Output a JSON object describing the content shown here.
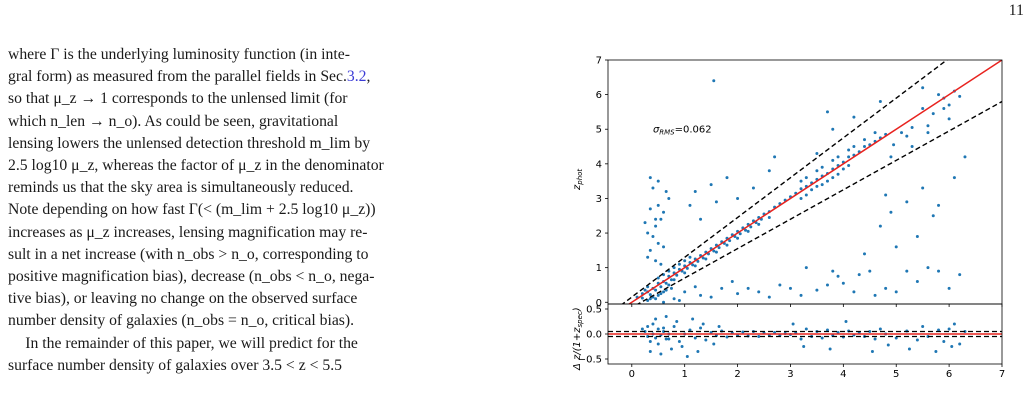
{
  "page": {
    "number": "11"
  },
  "body": {
    "para1": [
      "where Γ is the underlying luminosity function (in inte-",
      "gral form) as measured from the parallel fields in Sec.",
      "3.2",
      ",",
      "so that μ_z → 1 corresponds to the unlensed limit (for",
      "which n_len → n_o).  As could be seen, gravitational",
      "lensing lowers the unlensed detection threshold m_lim by",
      "2.5 log10 μ_z, whereas the factor of μ_z in the denominator",
      "reminds us that the sky area is simultaneously reduced.",
      "Note depending on how fast Γ(< (m_lim + 2.5 log10 μ_z))",
      "increases as μ_z increases, lensing magnification may re-",
      "sult in a net increase (with n_obs > n_o, corresponding to",
      "positive magnification bias), decrease (n_obs < n_o, nega-",
      "tive bias), or leaving no change on the observed surface",
      "number density of galaxies (n_obs = n_o, critical bias)."
    ],
    "para2": [
      "In the remainder of this paper, we will predict for the",
      "surface number density of galaxies over 3.5 < z < 5.5"
    ]
  },
  "figure": {
    "annotation": "σ_RMS=0.062",
    "colors": {
      "points": "#1f77b4",
      "fit": "#e8231f",
      "dashed": "#000000"
    }
  },
  "chart_data": [
    {
      "type": "scatter",
      "panel": "top",
      "xlabel": "z_spec",
      "ylabel": "z_phot",
      "xlim": [
        -0.45,
        7
      ],
      "ylim": [
        -0.05,
        7
      ],
      "xticks": [
        "0",
        "1",
        "2",
        "3",
        "4",
        "5",
        "6",
        "7"
      ],
      "yticks": [
        "0",
        "1",
        "2",
        "3",
        "4",
        "5",
        "6",
        "7"
      ],
      "lines": [
        {
          "name": "one-to-one",
          "style": "solid",
          "color": "#e8231f",
          "slope": 1.0,
          "intercept": 0.0
        },
        {
          "name": "upper",
          "style": "dashed",
          "color": "#000000",
          "relation": "z_phot = z_spec + 0.15(1+z_spec)"
        },
        {
          "name": "lower",
          "style": "dashed",
          "color": "#000000",
          "relation": "z_phot = z_spec - 0.15(1+z_spec)"
        }
      ],
      "points": [
        [
          0.1,
          0.15
        ],
        [
          0.2,
          0.12
        ],
        [
          0.3,
          0.3
        ],
        [
          0.35,
          0.22
        ],
        [
          0.4,
          0.4
        ],
        [
          0.45,
          0.35
        ],
        [
          0.5,
          0.55
        ],
        [
          0.55,
          0.45
        ],
        [
          0.6,
          0.6
        ],
        [
          0.65,
          0.55
        ],
        [
          0.7,
          0.75
        ],
        [
          0.75,
          0.65
        ],
        [
          0.8,
          0.85
        ],
        [
          0.85,
          0.78
        ],
        [
          0.9,
          0.95
        ],
        [
          0.95,
          0.9
        ],
        [
          1.0,
          1.05
        ],
        [
          1.05,
          0.98
        ],
        [
          1.1,
          1.15
        ],
        [
          1.15,
          1.08
        ],
        [
          1.2,
          1.25
        ],
        [
          1.25,
          1.18
        ],
        [
          1.3,
          1.35
        ],
        [
          1.35,
          1.28
        ],
        [
          1.4,
          1.45
        ],
        [
          1.45,
          1.4
        ],
        [
          1.5,
          1.55
        ],
        [
          1.55,
          1.48
        ],
        [
          1.6,
          1.65
        ],
        [
          1.65,
          1.58
        ],
        [
          1.7,
          1.75
        ],
        [
          1.75,
          1.7
        ],
        [
          1.8,
          1.85
        ],
        [
          1.85,
          1.78
        ],
        [
          1.9,
          1.95
        ],
        [
          1.95,
          1.9
        ],
        [
          2.0,
          2.05
        ],
        [
          2.05,
          1.98
        ],
        [
          2.1,
          2.15
        ],
        [
          2.15,
          2.08
        ],
        [
          2.2,
          2.25
        ],
        [
          2.25,
          2.18
        ],
        [
          2.3,
          2.35
        ],
        [
          2.35,
          2.3
        ],
        [
          2.4,
          2.45
        ],
        [
          2.45,
          2.4
        ],
        [
          2.5,
          2.55
        ],
        [
          2.6,
          2.62
        ],
        [
          2.7,
          2.75
        ],
        [
          2.8,
          2.85
        ],
        [
          2.9,
          2.95
        ],
        [
          3.0,
          3.05
        ],
        [
          3.1,
          3.15
        ],
        [
          3.2,
          3.28
        ],
        [
          3.3,
          3.35
        ],
        [
          3.4,
          3.45
        ],
        [
          3.5,
          3.55
        ],
        [
          3.6,
          3.65
        ],
        [
          3.7,
          3.72
        ],
        [
          3.8,
          3.85
        ],
        [
          3.9,
          3.95
        ],
        [
          4.0,
          4.05
        ],
        [
          4.1,
          4.2
        ],
        [
          4.2,
          4.25
        ],
        [
          4.3,
          4.35
        ],
        [
          4.4,
          4.5
        ],
        [
          4.5,
          4.55
        ],
        [
          4.6,
          4.65
        ],
        [
          4.7,
          4.75
        ],
        [
          4.8,
          4.85
        ],
        [
          0.3,
          0.05
        ],
        [
          0.35,
          0.1
        ],
        [
          0.4,
          0.15
        ],
        [
          0.45,
          0.1
        ],
        [
          0.5,
          0.2
        ],
        [
          0.55,
          0.25
        ],
        [
          0.6,
          0.3
        ],
        [
          0.65,
          0.35
        ],
        [
          0.7,
          0.5
        ],
        [
          0.75,
          0.4
        ],
        [
          0.2,
          0.25
        ],
        [
          0.25,
          0.35
        ],
        [
          0.3,
          0.45
        ],
        [
          0.5,
          0.7
        ],
        [
          0.6,
          0.8
        ],
        [
          0.7,
          0.9
        ],
        [
          0.8,
          1.0
        ],
        [
          0.9,
          1.1
        ],
        [
          1.0,
          1.2
        ],
        [
          1.1,
          1.3
        ],
        [
          0.8,
          0.65
        ],
        [
          1.0,
          0.85
        ],
        [
          1.2,
          1.05
        ],
        [
          1.4,
          1.25
        ],
        [
          1.6,
          1.45
        ],
        [
          1.8,
          1.65
        ],
        [
          2.0,
          1.85
        ],
        [
          2.2,
          2.05
        ],
        [
          2.4,
          2.25
        ],
        [
          2.6,
          2.45
        ],
        [
          3.2,
          3.0
        ],
        [
          3.3,
          3.1
        ],
        [
          3.4,
          3.25
        ],
        [
          3.5,
          3.35
        ],
        [
          3.6,
          3.4
        ],
        [
          3.7,
          3.5
        ],
        [
          3.8,
          3.6
        ],
        [
          3.9,
          3.7
        ],
        [
          4.0,
          3.85
        ],
        [
          4.1,
          3.95
        ],
        [
          3.2,
          3.5
        ],
        [
          3.3,
          3.6
        ],
        [
          3.5,
          3.8
        ],
        [
          3.6,
          3.9
        ],
        [
          3.8,
          4.1
        ],
        [
          3.9,
          4.2
        ],
        [
          4.1,
          4.4
        ],
        [
          4.2,
          4.5
        ],
        [
          4.4,
          4.7
        ],
        [
          4.6,
          4.9
        ],
        [
          0.35,
          3.6
        ],
        [
          0.4,
          3.3
        ],
        [
          0.5,
          2.8
        ],
        [
          0.55,
          2.4
        ],
        [
          0.3,
          2.0
        ],
        [
          0.45,
          2.2
        ],
        [
          0.6,
          2.6
        ],
        [
          0.7,
          3.0
        ],
        [
          0.5,
          3.5
        ],
        [
          0.65,
          3.2
        ],
        [
          0.3,
          1.3
        ],
        [
          0.35,
          1.5
        ],
        [
          0.5,
          1.7
        ],
        [
          0.4,
          1.9
        ],
        [
          0.55,
          1.1
        ],
        [
          0.6,
          1.6
        ],
        [
          0.45,
          2.4
        ],
        [
          0.35,
          2.7
        ],
        [
          0.25,
          2.3
        ],
        [
          0.45,
          1.2
        ],
        [
          1.55,
          6.4
        ],
        [
          3.7,
          5.5
        ],
        [
          3.8,
          5.0
        ],
        [
          4.2,
          5.35
        ],
        [
          3.5,
          4.3
        ],
        [
          4.7,
          5.8
        ],
        [
          5.5,
          6.2
        ],
        [
          5.8,
          6.0
        ],
        [
          5.9,
          5.6
        ],
        [
          6.0,
          5.3
        ],
        [
          5.5,
          5.6
        ],
        [
          5.2,
          4.8
        ],
        [
          5.6,
          5.1
        ],
        [
          5.9,
          5.9
        ],
        [
          6.1,
          6.1
        ],
        [
          6.2,
          5.95
        ],
        [
          4.95,
          4.55
        ],
        [
          5.1,
          4.9
        ],
        [
          5.3,
          5.05
        ],
        [
          5.7,
          5.45
        ],
        [
          1.1,
          2.8
        ],
        [
          1.2,
          3.2
        ],
        [
          1.5,
          3.4
        ],
        [
          1.8,
          3.6
        ],
        [
          2.3,
          3.3
        ],
        [
          2.6,
          3.8
        ],
        [
          1.3,
          2.4
        ],
        [
          1.6,
          2.9
        ],
        [
          2.0,
          3.0
        ],
        [
          2.7,
          4.2
        ],
        [
          3.0,
          0.4
        ],
        [
          3.2,
          0.2
        ],
        [
          3.5,
          0.35
        ],
        [
          3.7,
          0.5
        ],
        [
          3.9,
          0.75
        ],
        [
          4.2,
          0.3
        ],
        [
          4.3,
          0.8
        ],
        [
          4.5,
          0.9
        ],
        [
          4.6,
          0.2
        ],
        [
          4.8,
          0.4
        ],
        [
          5.2,
          0.9
        ],
        [
          5.4,
          0.6
        ],
        [
          5.6,
          1.0
        ],
        [
          5.8,
          0.9
        ],
        [
          6.0,
          0.4
        ],
        [
          6.2,
          0.8
        ],
        [
          3.3,
          1.0
        ],
        [
          3.8,
          0.9
        ],
        [
          4.0,
          0.55
        ],
        [
          5.0,
          0.3
        ],
        [
          2.4,
          0.3
        ],
        [
          2.6,
          0.15
        ],
        [
          2.8,
          0.5
        ],
        [
          2.2,
          0.4
        ],
        [
          4.4,
          1.4
        ],
        [
          4.7,
          2.2
        ],
        [
          5.0,
          1.6
        ],
        [
          5.7,
          2.5
        ],
        [
          4.8,
          3.1
        ],
        [
          5.5,
          3.3
        ],
        [
          5.2,
          2.9
        ],
        [
          4.9,
          2.6
        ],
        [
          5.4,
          1.9
        ],
        [
          5.8,
          2.8
        ],
        [
          6.1,
          3.6
        ],
        [
          6.3,
          4.2
        ],
        [
          1.0,
          0.3
        ],
        [
          1.3,
          0.2
        ],
        [
          1.7,
          0.4
        ],
        [
          2.0,
          0.25
        ],
        [
          0.8,
          0.1
        ],
        [
          1.5,
          0.15
        ],
        [
          1.9,
          0.6
        ],
        [
          0.6,
          0.0
        ],
        [
          0.9,
          0.05
        ],
        [
          1.2,
          0.45
        ],
        [
          4.9,
          4.2
        ],
        [
          5.3,
          4.5
        ],
        [
          5.6,
          4.9
        ],
        [
          6.0,
          5.7
        ]
      ]
    },
    {
      "type": "scatter",
      "panel": "bottom",
      "xlabel": "z_spec",
      "ylabel": "Δ z/(1+z_spec)",
      "xlim": [
        -0.45,
        7
      ],
      "ylim": [
        -0.6,
        0.6
      ],
      "xticks": [
        "0",
        "1",
        "2",
        "3",
        "4",
        "5",
        "6",
        "7"
      ],
      "yticks": [
        "−0.5",
        "0.0",
        "0.5"
      ],
      "lines": [
        {
          "name": "zero",
          "style": "solid",
          "color": "#e8231f",
          "value": 0.0
        },
        {
          "name": "upper",
          "style": "dashed",
          "color": "#000000",
          "value": 0.05
        },
        {
          "name": "lower",
          "style": "dashed",
          "color": "#000000",
          "value": -0.05
        }
      ],
      "points": [
        [
          0.2,
          0.1
        ],
        [
          0.3,
          -0.05
        ],
        [
          0.4,
          0.2
        ],
        [
          0.5,
          -0.2
        ],
        [
          0.6,
          0.05
        ],
        [
          0.7,
          -0.1
        ],
        [
          0.8,
          0.15
        ],
        [
          0.9,
          -0.15
        ],
        [
          1.0,
          0.0
        ],
        [
          1.1,
          0.08
        ],
        [
          1.2,
          -0.08
        ],
        [
          1.3,
          0.12
        ],
        [
          1.4,
          -0.12
        ],
        [
          1.5,
          0.03
        ],
        [
          1.6,
          -0.03
        ],
        [
          1.7,
          0.06
        ],
        [
          1.8,
          -0.06
        ],
        [
          1.9,
          0.02
        ],
        [
          2.0,
          -0.02
        ],
        [
          2.1,
          0.04
        ],
        [
          2.2,
          -0.04
        ],
        [
          2.3,
          0.05
        ],
        [
          2.4,
          -0.05
        ],
        [
          2.5,
          0.02
        ],
        [
          2.6,
          -0.02
        ],
        [
          2.7,
          0.03
        ],
        [
          2.8,
          -0.03
        ],
        [
          2.9,
          0.01
        ],
        [
          3.0,
          -0.01
        ],
        [
          3.1,
          0.02
        ],
        [
          3.2,
          -0.1
        ],
        [
          3.3,
          0.1
        ],
        [
          3.4,
          -0.05
        ],
        [
          3.5,
          0.05
        ],
        [
          3.6,
          -0.08
        ],
        [
          3.7,
          0.08
        ],
        [
          3.8,
          -0.03
        ],
        [
          3.9,
          0.03
        ],
        [
          4.0,
          -0.06
        ],
        [
          4.1,
          0.06
        ],
        [
          4.2,
          -0.02
        ],
        [
          4.3,
          0.02
        ],
        [
          4.4,
          -0.05
        ],
        [
          4.5,
          0.05
        ],
        [
          4.6,
          -0.1
        ],
        [
          4.7,
          0.1
        ],
        [
          4.8,
          0.0
        ],
        [
          5.0,
          -0.08
        ],
        [
          5.2,
          0.06
        ],
        [
          5.4,
          -0.12
        ],
        [
          5.5,
          0.15
        ],
        [
          5.6,
          -0.05
        ],
        [
          5.8,
          0.08
        ],
        [
          5.9,
          -0.15
        ],
        [
          6.0,
          0.1
        ],
        [
          6.2,
          -0.2
        ],
        [
          6.3,
          0.05
        ],
        [
          0.35,
          -0.35
        ],
        [
          0.45,
          0.3
        ],
        [
          0.55,
          -0.4
        ],
        [
          0.65,
          0.35
        ],
        [
          0.75,
          -0.3
        ],
        [
          0.85,
          0.25
        ],
        [
          0.95,
          -0.25
        ],
        [
          1.05,
          -0.45
        ],
        [
          1.15,
          0.3
        ],
        [
          1.25,
          -0.35
        ],
        [
          1.35,
          0.2
        ],
        [
          1.55,
          -0.2
        ],
        [
          1.65,
          0.15
        ],
        [
          0.25,
          0.05
        ],
        [
          0.3,
          0.15
        ],
        [
          0.35,
          -0.15
        ],
        [
          0.4,
          0.0
        ],
        [
          0.45,
          -0.08
        ],
        [
          0.5,
          0.1
        ],
        [
          0.55,
          -0.02
        ],
        [
          0.6,
          0.12
        ],
        [
          0.65,
          -0.1
        ],
        [
          0.7,
          0.0
        ],
        [
          3.05,
          0.2
        ],
        [
          3.25,
          -0.25
        ],
        [
          3.75,
          -0.3
        ],
        [
          4.05,
          0.25
        ],
        [
          4.55,
          -0.35
        ],
        [
          4.85,
          -0.22
        ],
        [
          5.25,
          -0.3
        ],
        [
          5.75,
          -0.35
        ],
        [
          6.05,
          -0.25
        ],
        [
          6.1,
          0.2
        ]
      ]
    }
  ]
}
